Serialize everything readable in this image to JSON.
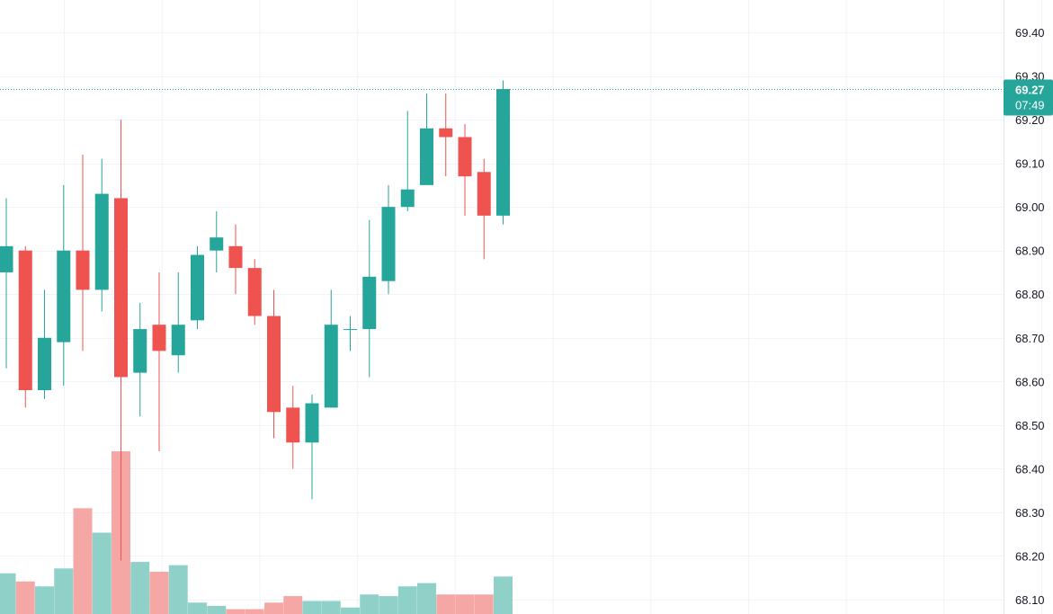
{
  "chart_data": {
    "type": "candlestick",
    "y_axis": {
      "position": "right",
      "ylim": [
        68.08,
        69.47
      ],
      "ticks": [
        "68.10",
        "68.20",
        "68.30",
        "68.40",
        "68.50",
        "68.60",
        "68.70",
        "68.80",
        "68.90",
        "69.00",
        "69.10",
        "69.20",
        "69.30",
        "69.40"
      ]
    },
    "grid": true,
    "vertical_grid_count": 11,
    "candles": [
      {
        "o": 68.85,
        "h": 69.02,
        "l": 68.63,
        "c": 68.91
      },
      {
        "o": 68.9,
        "h": 68.91,
        "l": 68.54,
        "c": 68.58
      },
      {
        "o": 68.58,
        "h": 68.81,
        "l": 68.56,
        "c": 68.7
      },
      {
        "o": 68.69,
        "h": 69.05,
        "l": 68.59,
        "c": 68.9
      },
      {
        "o": 68.9,
        "h": 69.12,
        "l": 68.67,
        "c": 68.81
      },
      {
        "o": 68.81,
        "h": 69.11,
        "l": 68.76,
        "c": 69.03
      },
      {
        "o": 69.02,
        "h": 69.2,
        "l": 68.19,
        "c": 68.61
      },
      {
        "o": 68.62,
        "h": 68.78,
        "l": 68.52,
        "c": 68.72
      },
      {
        "o": 68.73,
        "h": 68.85,
        "l": 68.44,
        "c": 68.67
      },
      {
        "o": 68.66,
        "h": 68.85,
        "l": 68.62,
        "c": 68.73
      },
      {
        "o": 68.74,
        "h": 68.91,
        "l": 68.72,
        "c": 68.89
      },
      {
        "o": 68.9,
        "h": 68.99,
        "l": 68.85,
        "c": 68.93
      },
      {
        "o": 68.91,
        "h": 68.96,
        "l": 68.8,
        "c": 68.86
      },
      {
        "o": 68.86,
        "h": 68.88,
        "l": 68.73,
        "c": 68.75
      },
      {
        "o": 68.75,
        "h": 68.81,
        "l": 68.47,
        "c": 68.53
      },
      {
        "o": 68.54,
        "h": 68.59,
        "l": 68.4,
        "c": 68.46
      },
      {
        "o": 68.46,
        "h": 68.57,
        "l": 68.33,
        "c": 68.55
      },
      {
        "o": 68.54,
        "h": 68.81,
        "l": 68.54,
        "c": 68.73
      },
      {
        "o": 68.72,
        "h": 68.75,
        "l": 68.67,
        "c": 68.72
      },
      {
        "o": 68.72,
        "h": 68.97,
        "l": 68.61,
        "c": 68.84
      },
      {
        "o": 68.83,
        "h": 69.05,
        "l": 68.8,
        "c": 69.0
      },
      {
        "o": 69.0,
        "h": 69.22,
        "l": 68.99,
        "c": 69.04
      },
      {
        "o": 69.05,
        "h": 69.26,
        "l": 69.05,
        "c": 69.18
      },
      {
        "o": 69.18,
        "h": 69.26,
        "l": 69.07,
        "c": 69.16
      },
      {
        "o": 69.16,
        "h": 69.19,
        "l": 68.98,
        "c": 69.07
      },
      {
        "o": 69.08,
        "h": 69.11,
        "l": 68.88,
        "c": 68.98
      },
      {
        "o": 68.98,
        "h": 69.29,
        "l": 68.96,
        "c": 69.27
      }
    ],
    "volume_relative": [
      0.25,
      0.2,
      0.17,
      0.28,
      0.65,
      0.5,
      1.0,
      0.32,
      0.26,
      0.3,
      0.07,
      0.05,
      0.03,
      0.03,
      0.07,
      0.11,
      0.08,
      0.08,
      0.04,
      0.12,
      0.11,
      0.17,
      0.19,
      0.12,
      0.12,
      0.12,
      0.23
    ],
    "last_price": {
      "value": 69.27,
      "label": "69.27",
      "countdown": "07:49"
    },
    "colors": {
      "up": "#26a69a",
      "down": "#ef5350",
      "up_volume": "#8fd1c9",
      "down_volume": "#f5a7a6",
      "grid": "#f0f3fa",
      "badge": "#26a69a",
      "axis_text": "#131722"
    }
  }
}
